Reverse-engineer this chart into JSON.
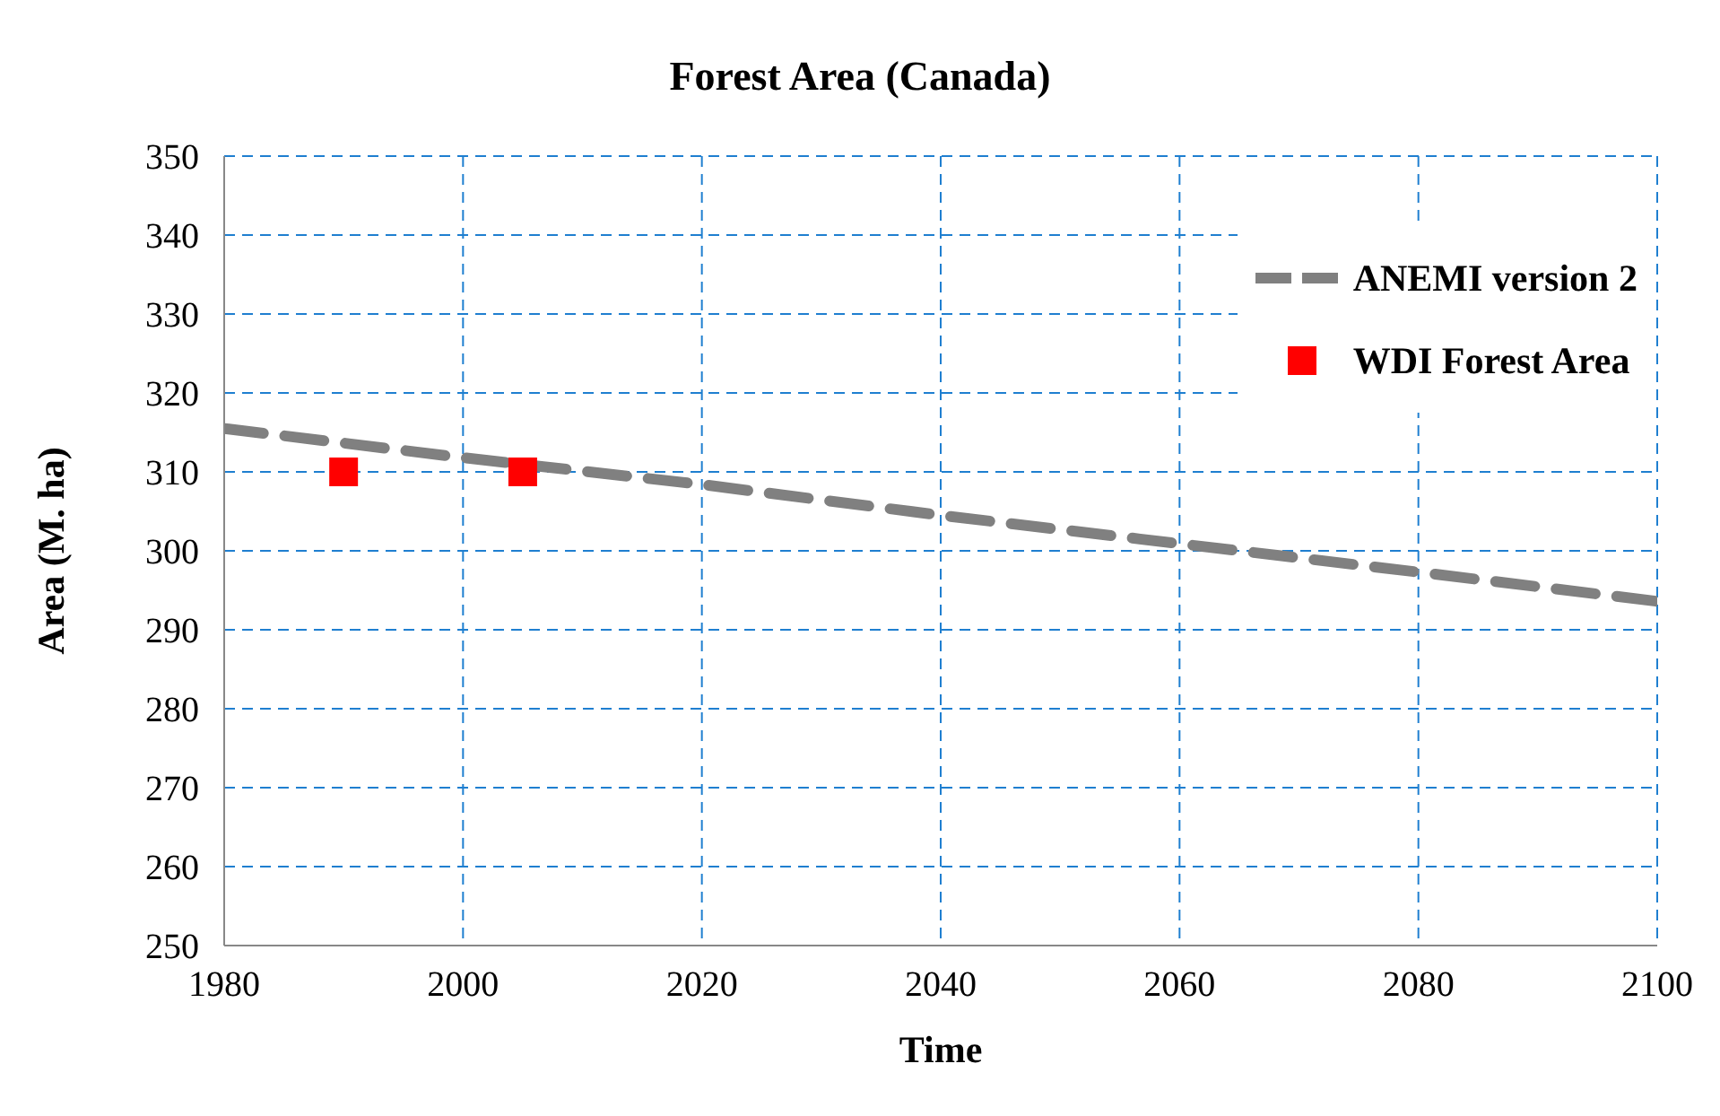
{
  "chart_data": {
    "type": "line",
    "title": "Forest Area (Canada)",
    "xlabel": "Time",
    "ylabel": "Area (M. ha)",
    "series": [
      {
        "name": "ANEMI version 2",
        "color": "#808080",
        "line_style": "dashed",
        "marker": "none",
        "x": [
          1980,
          2000,
          2020,
          2040,
          2060,
          2080,
          2100
        ],
        "values": [
          315.5,
          311.8,
          308.4,
          304.5,
          300.9,
          297.3,
          293.6
        ]
      },
      {
        "name": "WDI Forest Area",
        "type": "scatter",
        "color": "#ff0000",
        "marker": "square",
        "x": [
          1990,
          2005
        ],
        "values": [
          310,
          310
        ]
      }
    ],
    "xlim": [
      1980,
      2100
    ],
    "xticks": [
      1980,
      2000,
      2020,
      2040,
      2060,
      2080,
      2100
    ],
    "ylim": [
      250,
      350
    ],
    "yticks": [
      250,
      260,
      270,
      280,
      290,
      300,
      310,
      320,
      330,
      340,
      350
    ],
    "grid": true,
    "legend": "top right"
  }
}
